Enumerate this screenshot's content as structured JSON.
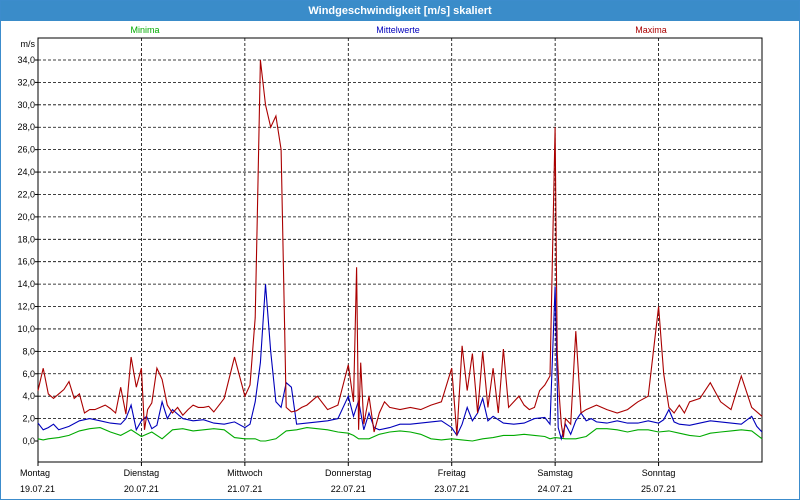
{
  "window": {
    "title": "Windgeschwindigkeit [m/s] skaliert"
  },
  "chart_data": {
    "type": "line",
    "title": "Windgeschwindigkeit [m/s] skaliert",
    "ylabel": "m/s",
    "ylim": [
      0,
      35
    ],
    "yticks": [
      "0,0",
      "2,0",
      "4,0",
      "6,0",
      "8,0",
      "10,0",
      "12,0",
      "14,0",
      "16,0",
      "18,0",
      "20,0",
      "22,0",
      "24,0",
      "26,0",
      "28,0",
      "30,0",
      "32,0",
      "34,0"
    ],
    "xlim": [
      0,
      7
    ],
    "days": [
      {
        "name": "Montag",
        "date": "19.07.21"
      },
      {
        "name": "Dienstag",
        "date": "20.07.21"
      },
      {
        "name": "Mittwoch",
        "date": "21.07.21"
      },
      {
        "name": "Donnerstag",
        "date": "22.07.21"
      },
      {
        "name": "Freitag",
        "date": "23.07.21"
      },
      {
        "name": "Samstag",
        "date": "24.07.21"
      },
      {
        "name": "Sonntag",
        "date": "25.07.21"
      }
    ],
    "grid": true,
    "legend_placement": "top",
    "series": [
      {
        "name": "Minima",
        "color": "#00aa00",
        "x": [
          0,
          0.05,
          0.1,
          0.2,
          0.3,
          0.4,
          0.5,
          0.6,
          0.7,
          0.8,
          0.9,
          1.0,
          1.1,
          1.2,
          1.3,
          1.4,
          1.5,
          1.6,
          1.7,
          1.8,
          1.9,
          2.0,
          2.1,
          2.15,
          2.2,
          2.3,
          2.4,
          2.5,
          2.6,
          2.7,
          2.8,
          2.9,
          3.0,
          3.05,
          3.1,
          3.2,
          3.3,
          3.4,
          3.5,
          3.6,
          3.7,
          3.8,
          3.9,
          4.0,
          4.1,
          4.2,
          4.3,
          4.4,
          4.5,
          4.6,
          4.7,
          4.8,
          4.9,
          4.95,
          5.0,
          5.1,
          5.2,
          5.3,
          5.4,
          5.5,
          5.6,
          5.7,
          5.8,
          5.9,
          6.0,
          6.1,
          6.2,
          6.3,
          6.4,
          6.5,
          6.6,
          6.7,
          6.8,
          6.9,
          7.0
        ],
        "y": [
          0.2,
          0.1,
          0.2,
          0.3,
          0.5,
          0.9,
          1.1,
          1.2,
          0.8,
          0.5,
          1.0,
          0.4,
          0.8,
          0.2,
          1.0,
          1.1,
          0.9,
          1.0,
          1.1,
          1.0,
          0.3,
          0.2,
          0.2,
          0.0,
          0.0,
          0.2,
          0.9,
          1.0,
          1.2,
          1.1,
          1.0,
          0.8,
          0.7,
          0.5,
          0.2,
          0.2,
          0.6,
          0.8,
          0.9,
          0.8,
          0.6,
          0.2,
          0.1,
          0.2,
          0.1,
          0.0,
          0.2,
          0.3,
          0.5,
          0.5,
          0.6,
          0.5,
          0.4,
          0.2,
          0.3,
          0.2,
          0.2,
          0.4,
          1.1,
          1.1,
          1.0,
          0.8,
          1.0,
          1.0,
          0.8,
          0.9,
          0.7,
          0.5,
          0.4,
          0.7,
          0.8,
          0.9,
          1.0,
          0.9,
          0.2
        ]
      },
      {
        "name": "Mittelwerte",
        "color": "#0000bb",
        "x": [
          0,
          0.05,
          0.1,
          0.15,
          0.2,
          0.3,
          0.4,
          0.5,
          0.6,
          0.7,
          0.8,
          0.85,
          0.9,
          0.95,
          1.0,
          1.05,
          1.1,
          1.15,
          1.2,
          1.25,
          1.3,
          1.35,
          1.4,
          1.5,
          1.6,
          1.7,
          1.8,
          1.9,
          2.0,
          2.05,
          2.1,
          2.15,
          2.2,
          2.25,
          2.3,
          2.35,
          2.4,
          2.45,
          2.5,
          2.6,
          2.7,
          2.8,
          2.9,
          3.0,
          3.05,
          3.1,
          3.15,
          3.2,
          3.25,
          3.3,
          3.4,
          3.5,
          3.6,
          3.7,
          3.8,
          3.9,
          4.0,
          4.05,
          4.1,
          4.15,
          4.2,
          4.25,
          4.3,
          4.35,
          4.4,
          4.5,
          4.6,
          4.7,
          4.8,
          4.9,
          4.95,
          5.0,
          5.03,
          5.06,
          5.1,
          5.15,
          5.2,
          5.25,
          5.3,
          5.35,
          5.4,
          5.5,
          5.6,
          5.7,
          5.8,
          5.9,
          6.0,
          6.05,
          6.1,
          6.15,
          6.2,
          6.3,
          6.4,
          6.5,
          6.6,
          6.7,
          6.8,
          6.9,
          6.95,
          7.0
        ],
        "y": [
          1.6,
          1.0,
          1.2,
          1.5,
          1.0,
          1.3,
          1.8,
          2.0,
          1.8,
          1.6,
          1.5,
          2.0,
          3.2,
          1.0,
          1.8,
          2.2,
          1.1,
          1.4,
          3.5,
          2.0,
          2.8,
          2.4,
          2.0,
          1.8,
          1.9,
          1.6,
          1.5,
          1.7,
          1.2,
          1.5,
          3.5,
          7.0,
          14.0,
          8.0,
          3.5,
          3.0,
          5.2,
          4.8,
          1.5,
          1.6,
          1.7,
          1.8,
          2.0,
          4.0,
          2.2,
          3.6,
          1.0,
          2.5,
          1.2,
          1.0,
          1.2,
          1.5,
          1.5,
          1.6,
          1.7,
          1.8,
          1.2,
          0.5,
          1.5,
          3.0,
          1.8,
          2.5,
          3.8,
          1.8,
          2.2,
          1.6,
          1.5,
          1.6,
          2.0,
          2.1,
          1.5,
          13.8,
          1.2,
          0.2,
          1.5,
          0.6,
          1.8,
          2.5,
          1.8,
          2.0,
          1.7,
          1.6,
          1.8,
          1.6,
          1.6,
          1.8,
          1.6,
          1.9,
          2.8,
          1.7,
          1.5,
          1.4,
          1.6,
          1.8,
          1.7,
          1.6,
          1.5,
          2.2,
          1.3,
          0.8
        ]
      },
      {
        "name": "Maxima",
        "color": "#aa0000",
        "x": [
          0,
          0.05,
          0.1,
          0.15,
          0.2,
          0.25,
          0.3,
          0.35,
          0.4,
          0.45,
          0.5,
          0.55,
          0.6,
          0.65,
          0.7,
          0.75,
          0.8,
          0.85,
          0.9,
          0.95,
          1.0,
          1.03,
          1.06,
          1.1,
          1.15,
          1.2,
          1.25,
          1.3,
          1.35,
          1.4,
          1.45,
          1.5,
          1.55,
          1.6,
          1.65,
          1.7,
          1.8,
          1.9,
          2.0,
          2.05,
          2.1,
          2.12,
          2.15,
          2.2,
          2.25,
          2.3,
          2.35,
          2.4,
          2.45,
          2.5,
          2.55,
          2.6,
          2.7,
          2.8,
          2.9,
          3.0,
          3.05,
          3.08,
          3.1,
          3.12,
          3.15,
          3.2,
          3.25,
          3.3,
          3.35,
          3.4,
          3.5,
          3.6,
          3.7,
          3.8,
          3.9,
          4.0,
          4.05,
          4.1,
          4.15,
          4.2,
          4.25,
          4.3,
          4.35,
          4.4,
          4.45,
          4.5,
          4.55,
          4.6,
          4.65,
          4.7,
          4.75,
          4.8,
          4.85,
          4.9,
          4.95,
          5.0,
          5.02,
          5.04,
          5.06,
          5.08,
          5.1,
          5.15,
          5.2,
          5.25,
          5.3,
          5.35,
          5.4,
          5.45,
          5.5,
          5.6,
          5.7,
          5.8,
          5.9,
          6.0,
          6.05,
          6.1,
          6.15,
          6.2,
          6.25,
          6.3,
          6.4,
          6.5,
          6.6,
          6.7,
          6.8,
          6.9,
          7.0
        ],
        "y": [
          4.5,
          6.5,
          4.2,
          3.8,
          4.2,
          4.6,
          5.3,
          3.8,
          4.2,
          2.5,
          2.8,
          2.8,
          3.0,
          3.2,
          2.9,
          2.5,
          4.8,
          2.4,
          7.5,
          4.8,
          6.5,
          1.0,
          2.8,
          3.4,
          6.5,
          5.5,
          3.2,
          2.5,
          3.0,
          2.3,
          2.8,
          3.2,
          3.0,
          3.0,
          3.1,
          2.6,
          3.8,
          7.5,
          4.0,
          5.0,
          11.0,
          20.0,
          34.0,
          30.0,
          28.0,
          29.0,
          26.0,
          3.0,
          2.6,
          2.7,
          3.0,
          3.2,
          4.0,
          2.8,
          3.2,
          6.8,
          3.5,
          15.5,
          1.0,
          7.0,
          1.5,
          4.0,
          0.8,
          2.5,
          3.5,
          3.0,
          2.8,
          3.0,
          2.8,
          3.2,
          3.5,
          6.5,
          0.5,
          8.5,
          4.5,
          7.8,
          2.5,
          8.0,
          3.0,
          6.5,
          2.5,
          8.2,
          3.0,
          3.5,
          4.0,
          3.2,
          2.8,
          3.0,
          4.5,
          5.0,
          5.8,
          28.0,
          8.0,
          4.0,
          1.5,
          0.3,
          2.0,
          1.5,
          9.8,
          2.5,
          2.8,
          3.0,
          3.2,
          3.0,
          2.8,
          2.5,
          2.8,
          3.5,
          4.0,
          12.0,
          6.0,
          3.0,
          2.5,
          3.2,
          2.5,
          3.5,
          3.8,
          5.2,
          3.5,
          2.8,
          5.8,
          3.0,
          2.2
        ]
      }
    ]
  }
}
